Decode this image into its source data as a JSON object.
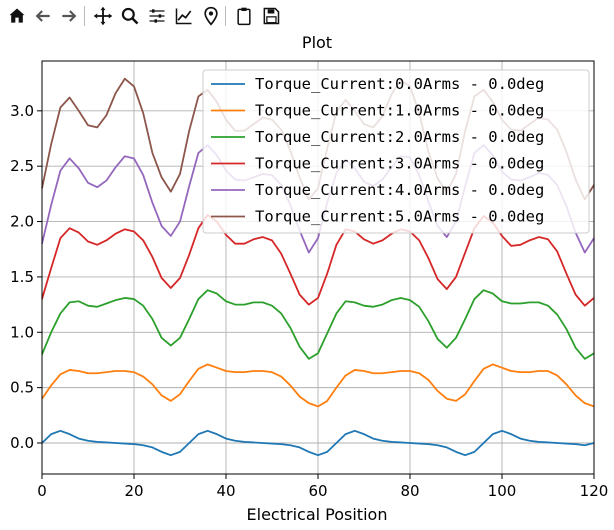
{
  "toolbar": {
    "buttons": [
      {
        "name": "home-icon"
      },
      {
        "name": "back-arrow-icon"
      },
      {
        "name": "forward-arrow-icon"
      },
      {
        "name": "pan-icon"
      },
      {
        "name": "zoom-icon"
      },
      {
        "name": "configure-subplots-icon"
      },
      {
        "name": "edit-axis-icon"
      },
      {
        "name": "location-pin-icon"
      },
      {
        "name": "clipboard-icon"
      },
      {
        "name": "save-icon"
      }
    ]
  },
  "chart_data": {
    "type": "line",
    "title": "Plot",
    "xlabel": "Electrical Position",
    "ylabel": "",
    "xlim": [
      0,
      120
    ],
    "ylim": [
      -0.28,
      3.45
    ],
    "xticks": [
      0,
      20,
      40,
      60,
      80,
      100,
      120
    ],
    "xtick_labels": [
      "0",
      "20",
      "40",
      "60",
      "80",
      "100",
      "120"
    ],
    "yticks": [
      0.0,
      0.5,
      1.0,
      1.5,
      2.0,
      2.5,
      3.0
    ],
    "ytick_labels": [
      "0.0",
      "0.5",
      "1.0",
      "1.5",
      "2.0",
      "2.5",
      "3.0"
    ],
    "grid": true,
    "legend_position": "top-right",
    "x": [
      0,
      2,
      4,
      6,
      8,
      10,
      12,
      14,
      16,
      18,
      20,
      22,
      24,
      26,
      28,
      30,
      32,
      34,
      36,
      38,
      40,
      42,
      44,
      46,
      48,
      50,
      52,
      54,
      56,
      58,
      60,
      62,
      64,
      66,
      68,
      70,
      72,
      74,
      76,
      78,
      80,
      82,
      84,
      86,
      88,
      90,
      92,
      94,
      96,
      98,
      100,
      102,
      104,
      106,
      108,
      110,
      112,
      114,
      116,
      118,
      120
    ],
    "series": [
      {
        "name": "Torque_Current:0.0Arms - 0.0deg",
        "color": "#1f77b4",
        "values": [
          0.0,
          0.08,
          0.11,
          0.08,
          0.04,
          0.02,
          0.01,
          0.005,
          0.0,
          -0.005,
          -0.01,
          -0.02,
          -0.04,
          -0.08,
          -0.11,
          -0.08,
          0.0,
          0.08,
          0.11,
          0.08,
          0.04,
          0.02,
          0.01,
          0.005,
          0.0,
          -0.005,
          -0.01,
          -0.02,
          -0.04,
          -0.08,
          -0.11,
          -0.08,
          0.0,
          0.08,
          0.11,
          0.08,
          0.04,
          0.02,
          0.01,
          0.005,
          0.0,
          -0.005,
          -0.01,
          -0.02,
          -0.04,
          -0.08,
          -0.11,
          -0.08,
          0.0,
          0.08,
          0.11,
          0.08,
          0.04,
          0.02,
          0.01,
          0.005,
          0.0,
          -0.005,
          -0.01,
          -0.02,
          0.0
        ]
      },
      {
        "name": "Torque_Current:1.0Arms - 0.0deg",
        "color": "#ff7f0e",
        "values": [
          0.4,
          0.52,
          0.62,
          0.66,
          0.65,
          0.63,
          0.63,
          0.64,
          0.65,
          0.65,
          0.64,
          0.6,
          0.53,
          0.43,
          0.38,
          0.44,
          0.56,
          0.67,
          0.71,
          0.68,
          0.65,
          0.64,
          0.64,
          0.65,
          0.65,
          0.64,
          0.6,
          0.52,
          0.42,
          0.36,
          0.33,
          0.38,
          0.5,
          0.61,
          0.66,
          0.65,
          0.63,
          0.63,
          0.64,
          0.65,
          0.65,
          0.63,
          0.57,
          0.47,
          0.4,
          0.38,
          0.44,
          0.56,
          0.67,
          0.71,
          0.68,
          0.65,
          0.64,
          0.64,
          0.65,
          0.65,
          0.61,
          0.53,
          0.43,
          0.36,
          0.33
        ]
      },
      {
        "name": "Torque_Current:2.0Arms - 0.0deg",
        "color": "#2ca02c",
        "values": [
          0.8,
          1.0,
          1.17,
          1.27,
          1.28,
          1.24,
          1.23,
          1.26,
          1.29,
          1.31,
          1.3,
          1.24,
          1.12,
          0.95,
          0.88,
          0.95,
          1.12,
          1.3,
          1.38,
          1.35,
          1.28,
          1.25,
          1.25,
          1.27,
          1.27,
          1.24,
          1.17,
          1.04,
          0.87,
          0.76,
          0.81,
          0.99,
          1.17,
          1.28,
          1.27,
          1.24,
          1.23,
          1.25,
          1.29,
          1.31,
          1.29,
          1.23,
          1.1,
          0.94,
          0.86,
          0.95,
          1.12,
          1.3,
          1.38,
          1.35,
          1.28,
          1.26,
          1.26,
          1.27,
          1.27,
          1.24,
          1.16,
          1.03,
          0.86,
          0.76,
          0.81
        ]
      },
      {
        "name": "Torque_Current:3.0Arms - 0.0deg",
        "color": "#d62728",
        "values": [
          1.3,
          1.58,
          1.85,
          1.94,
          1.9,
          1.82,
          1.79,
          1.83,
          1.89,
          1.93,
          1.91,
          1.83,
          1.68,
          1.49,
          1.4,
          1.49,
          1.7,
          1.94,
          2.06,
          2.0,
          1.88,
          1.8,
          1.8,
          1.84,
          1.86,
          1.83,
          1.71,
          1.53,
          1.34,
          1.25,
          1.31,
          1.53,
          1.79,
          1.93,
          1.91,
          1.84,
          1.8,
          1.83,
          1.89,
          1.93,
          1.91,
          1.83,
          1.67,
          1.48,
          1.39,
          1.5,
          1.72,
          1.94,
          2.05,
          1.99,
          1.87,
          1.78,
          1.79,
          1.83,
          1.86,
          1.84,
          1.73,
          1.53,
          1.34,
          1.24,
          1.31
        ]
      },
      {
        "name": "Torque_Current:4.0Arms - 0.0deg",
        "color": "#9467bd",
        "values": [
          1.8,
          2.15,
          2.46,
          2.57,
          2.48,
          2.35,
          2.31,
          2.37,
          2.49,
          2.59,
          2.57,
          2.42,
          2.17,
          1.96,
          1.87,
          2.0,
          2.32,
          2.62,
          2.69,
          2.6,
          2.46,
          2.38,
          2.37,
          2.4,
          2.43,
          2.42,
          2.33,
          2.15,
          1.92,
          1.72,
          1.85,
          2.17,
          2.44,
          2.56,
          2.48,
          2.36,
          2.32,
          2.38,
          2.49,
          2.59,
          2.58,
          2.42,
          2.18,
          1.96,
          1.86,
          2.0,
          2.32,
          2.62,
          2.69,
          2.6,
          2.45,
          2.38,
          2.37,
          2.4,
          2.44,
          2.42,
          2.33,
          2.14,
          1.9,
          1.72,
          1.85
        ]
      },
      {
        "name": "Torque_Current:5.0Arms - 0.0deg",
        "color": "#8c564b",
        "values": [
          2.3,
          2.7,
          3.03,
          3.12,
          3.0,
          2.87,
          2.85,
          2.96,
          3.16,
          3.29,
          3.22,
          2.98,
          2.62,
          2.4,
          2.27,
          2.43,
          2.82,
          3.13,
          3.19,
          3.08,
          2.92,
          2.82,
          2.82,
          2.88,
          2.94,
          2.92,
          2.83,
          2.64,
          2.4,
          2.2,
          2.3,
          2.66,
          2.99,
          3.1,
          3.0,
          2.88,
          2.85,
          2.95,
          3.15,
          3.28,
          3.22,
          2.98,
          2.63,
          2.39,
          2.26,
          2.43,
          2.82,
          3.13,
          3.19,
          3.08,
          2.92,
          2.83,
          2.82,
          2.88,
          2.94,
          2.92,
          2.83,
          2.63,
          2.38,
          2.2,
          2.33
        ]
      }
    ]
  }
}
